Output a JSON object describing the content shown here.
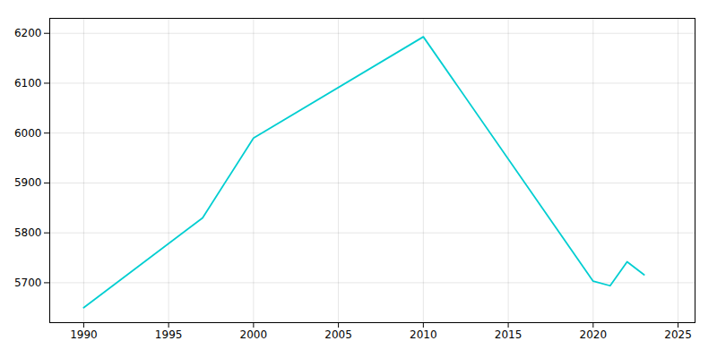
{
  "chart_data": {
    "type": "line",
    "x": [
      1990,
      1997,
      2000,
      2010,
      2020,
      2021,
      2022,
      2023
    ],
    "values": [
      5650,
      5830,
      5990,
      6193,
      5703,
      5694,
      5742,
      5716
    ],
    "color": "#00CED1",
    "xlim": [
      1988,
      2026
    ],
    "ylim": [
      5620,
      6230
    ],
    "xticks": [
      1990,
      1995,
      2000,
      2005,
      2010,
      2015,
      2020,
      2025
    ],
    "yticks": [
      5700,
      5800,
      5900,
      6000,
      6100,
      6200
    ],
    "grid": true
  }
}
